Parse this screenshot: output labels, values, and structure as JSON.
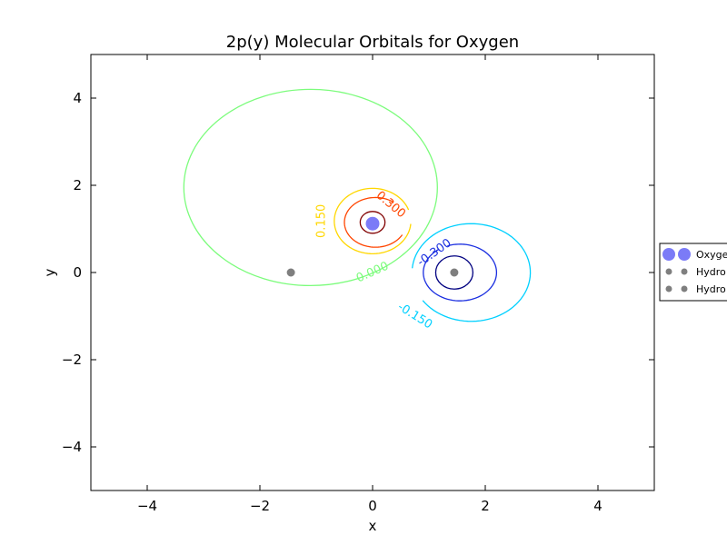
{
  "chart_data": {
    "type": "line",
    "title": "2p(y) Molecular Orbitals for Oxygen",
    "xlabel": "x",
    "ylabel": "y",
    "xlim": [
      -5,
      5
    ],
    "ylim": [
      -5,
      5
    ],
    "xticks": [
      -4,
      -2,
      0,
      2,
      4
    ],
    "yticks": [
      -4,
      -2,
      0,
      2,
      4
    ],
    "xtick_labels": [
      "−4",
      "−2",
      "0",
      "2",
      "4"
    ],
    "ytick_labels": [
      "−4",
      "−2",
      "0",
      "2",
      "4"
    ],
    "grid": false,
    "legend_placement": "right, outside plot (clipped)",
    "contours": [
      {
        "level": "0.000",
        "color": "#7cfc7c",
        "shape": "ellipse",
        "cx": -1.1,
        "cy": 1.95,
        "rx": 2.25,
        "ry": 2.25,
        "label_at": [
          0.0,
          0.0
        ],
        "label_angle": -24
      },
      {
        "level": "0.150",
        "color": "#ffd700",
        "shape": "arc",
        "cx": 0.0,
        "cy": 1.18,
        "rx": 0.68,
        "ry": 0.75,
        "from_deg": 20,
        "to_deg": 355,
        "label_at": [
          -0.9,
          1.18
        ],
        "label_angle": -90
      },
      {
        "level": "0.300",
        "color": "#ff4500",
        "shape": "arc",
        "cx": 0.05,
        "cy": 1.15,
        "rx": 0.55,
        "ry": 0.57,
        "from_deg": 55,
        "to_deg": 330,
        "label_at": [
          0.32,
          1.55
        ],
        "label_angle": 40
      },
      {
        "level": "",
        "color": "#800000",
        "shape": "ellipse",
        "cx": 0.0,
        "cy": 1.15,
        "rx": 0.22,
        "ry": 0.25
      },
      {
        "level": "-0.150",
        "color": "#00d0ff",
        "shape": "arc",
        "cx": 1.75,
        "cy": 0.0,
        "rx": 1.05,
        "ry": 1.12,
        "from_deg": 215,
        "to_deg": 535,
        "label_at": [
          0.75,
          -1.0
        ],
        "label_angle": 32
      },
      {
        "level": "-0.300",
        "color": "#1a2ee0",
        "shape": "arc",
        "cx": 1.55,
        "cy": 0.0,
        "rx": 0.65,
        "ry": 0.65,
        "from_deg": 125,
        "to_deg": 470,
        "label_at": [
          1.1,
          0.45
        ],
        "label_angle": -35
      },
      {
        "level": "",
        "color": "#000080",
        "shape": "ellipse",
        "cx": 1.45,
        "cy": 0.0,
        "rx": 0.33,
        "ry": 0.38
      }
    ],
    "atoms": [
      {
        "x": 0.0,
        "y": 1.12,
        "color": "#7b7bf7",
        "size": "large"
      },
      {
        "x": -1.45,
        "y": 0.0,
        "color": "#7f7f7f",
        "size": "small"
      },
      {
        "x": 1.45,
        "y": 0.0,
        "color": "#7f7f7f",
        "size": "small"
      }
    ],
    "legend": [
      {
        "label": "Oxyge",
        "color": "#7b7bf7",
        "size": "large"
      },
      {
        "label": "Hydro",
        "color": "#7f7f7f",
        "size": "small"
      },
      {
        "label": "Hydro",
        "color": "#7f7f7f",
        "size": "small"
      }
    ]
  }
}
